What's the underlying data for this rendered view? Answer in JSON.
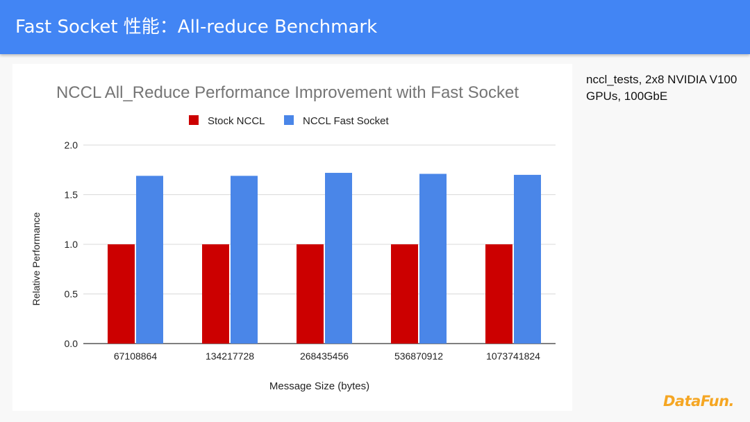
{
  "slide": {
    "title": "Fast Socket 性能：All-reduce Benchmark",
    "note": "nccl_tests, 2x8 NVIDIA V100 GPUs, 100GbE",
    "logo": "DataFun."
  },
  "colors": {
    "header": "#4285f4",
    "stock": "#cc0000",
    "fast": "#4a86e8",
    "logo": "#f5a623"
  },
  "chart_data": {
    "type": "bar",
    "title": "NCCL All_Reduce Performance Improvement with Fast Socket",
    "xlabel": "Message Size (bytes)",
    "ylabel": "Relative Performance",
    "categories": [
      "67108864",
      "134217728",
      "268435456",
      "536870912",
      "1073741824"
    ],
    "series": [
      {
        "name": "Stock NCCL",
        "values": [
          1.0,
          1.0,
          1.0,
          1.0,
          1.0
        ]
      },
      {
        "name": "NCCL Fast Socket",
        "values": [
          1.69,
          1.69,
          1.72,
          1.71,
          1.7
        ]
      }
    ],
    "ylim": [
      0,
      2.0
    ],
    "yticks": [
      "0.0",
      "0.5",
      "1.0",
      "1.5",
      "2.0"
    ],
    "grid": true,
    "legend": "top"
  }
}
